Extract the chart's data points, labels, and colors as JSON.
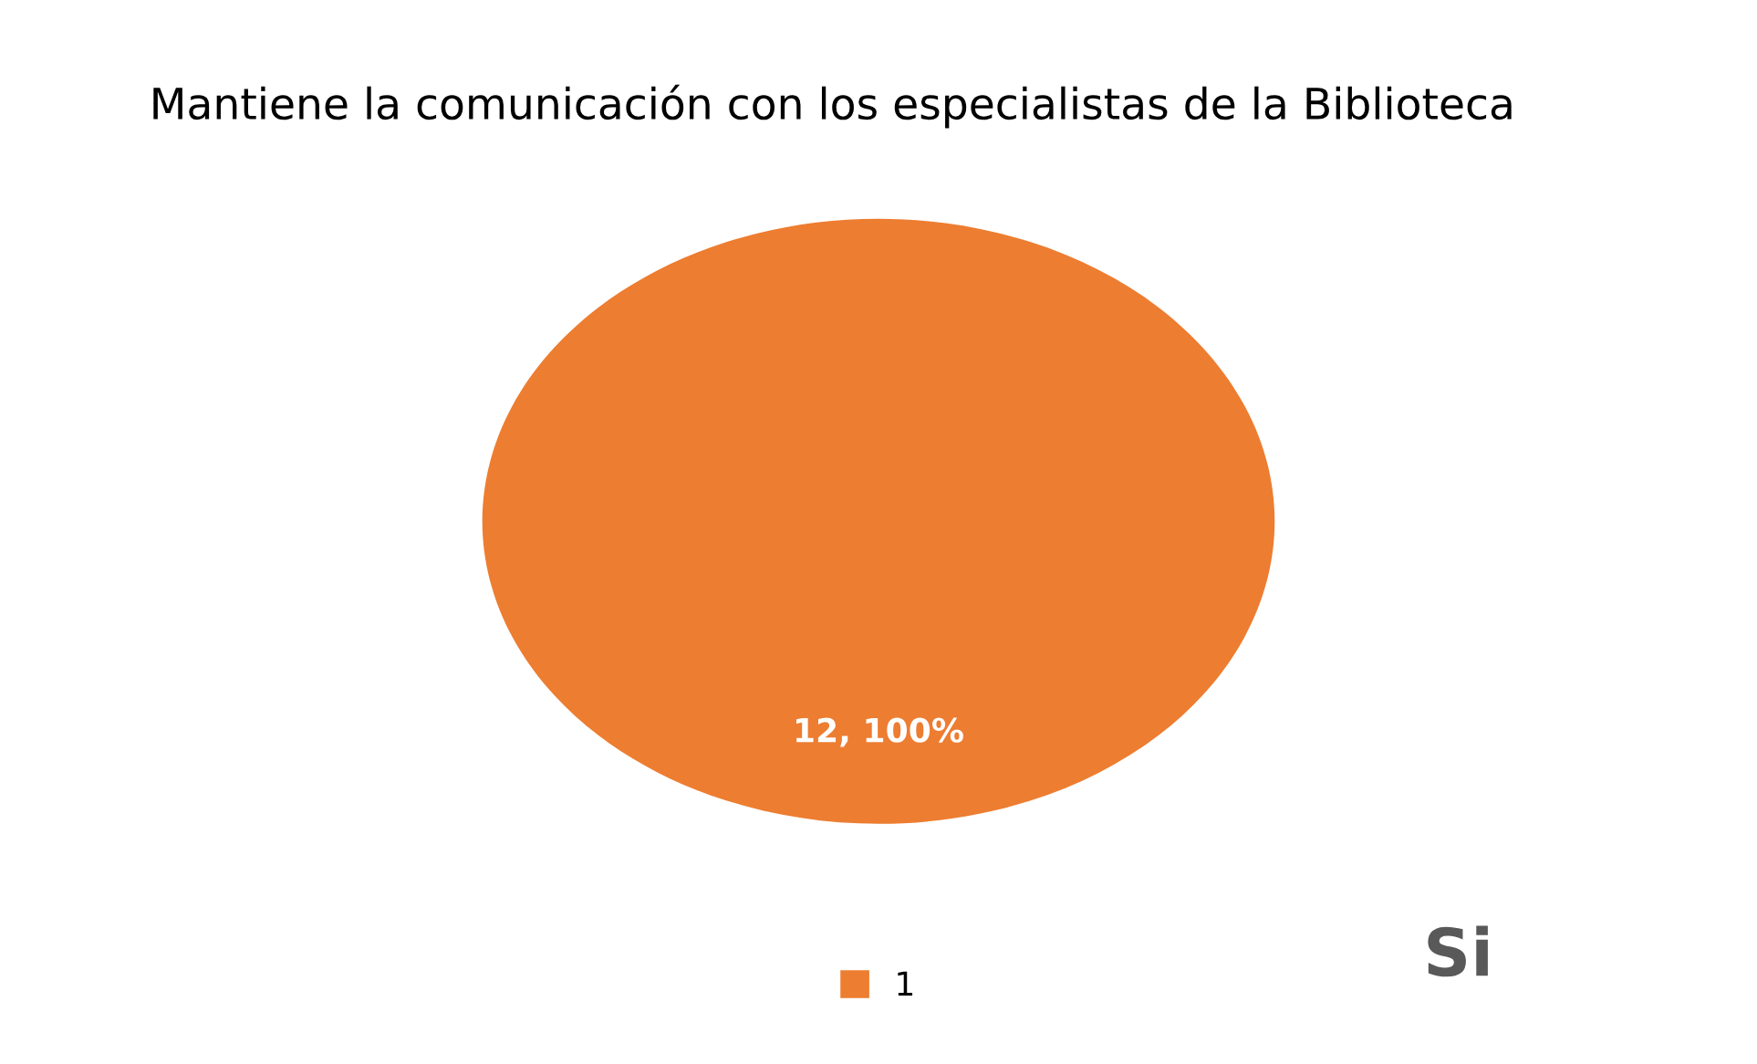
{
  "chart_data": {
    "type": "pie",
    "title": "Mantiene la comunicación con los especialistas de la Biblioteca",
    "categories": [
      "1"
    ],
    "values": [
      100
    ],
    "colors": [
      "#ed7d31"
    ],
    "value_labels": [
      "12, 100%"
    ],
    "legend": "bottom",
    "annotations": [
      "Si"
    ]
  }
}
